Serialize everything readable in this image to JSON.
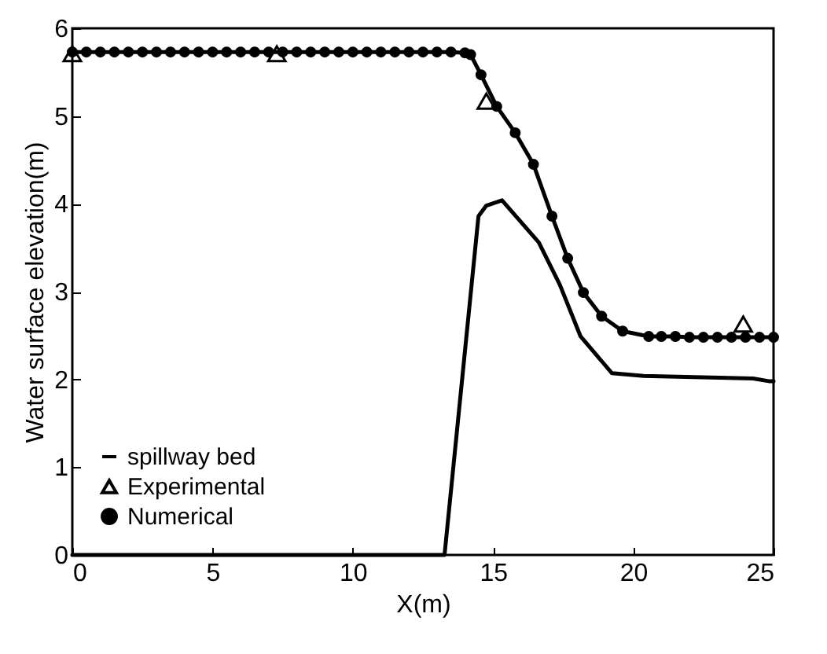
{
  "chart_data": {
    "type": "line",
    "xlabel": "X(m)",
    "ylabel": "Water surface elevation(m)",
    "xlim": [
      0,
      25
    ],
    "ylim": [
      0,
      6
    ],
    "xticks": [
      0,
      5,
      10,
      15,
      20,
      25
    ],
    "yticks": [
      0,
      1,
      2,
      3,
      4,
      5,
      6
    ],
    "legend": "bottom left",
    "series": [
      {
        "name": "spillway bed",
        "type": "line",
        "marker": "none",
        "color": "#000000",
        "x": [
          0,
          13.27,
          14.48,
          14.76,
          15.32,
          16.63,
          17.38,
          18.12,
          19.24,
          20.37,
          24.27,
          24.83,
          25
        ],
        "values": [
          0,
          0,
          3.86,
          3.98,
          4.04,
          3.56,
          3.08,
          2.49,
          2.07,
          2.04,
          2.01,
          1.98,
          1.98
        ]
      },
      {
        "name": "Experimental",
        "type": "scatter",
        "marker": "triangle",
        "color": "#000000",
        "x": [
          0,
          7.29,
          14.76,
          23.92
        ],
        "values": [
          5.71,
          5.71,
          5.17,
          2.63
        ]
      },
      {
        "name": "Numerical",
        "type": "line",
        "marker": "circle",
        "color": "#000000",
        "x": [
          0,
          0.5,
          1,
          1.5,
          2,
          2.5,
          3,
          3.5,
          4,
          4.5,
          5,
          5.5,
          6,
          6.5,
          7,
          7.5,
          8,
          8.5,
          9,
          9.5,
          10,
          10.5,
          11,
          11.5,
          12,
          12.5,
          13,
          13.5,
          14,
          14.2,
          14.57,
          15.13,
          15.79,
          16.44,
          17.1,
          17.66,
          18.22,
          18.87,
          19.62,
          20.55,
          21,
          21.5,
          22,
          22.5,
          23,
          23.5,
          24,
          24.5,
          25
        ],
        "values": [
          5.73,
          5.73,
          5.73,
          5.73,
          5.73,
          5.73,
          5.73,
          5.73,
          5.73,
          5.73,
          5.73,
          5.73,
          5.73,
          5.73,
          5.73,
          5.73,
          5.73,
          5.73,
          5.73,
          5.73,
          5.73,
          5.73,
          5.73,
          5.73,
          5.73,
          5.73,
          5.73,
          5.73,
          5.72,
          5.7,
          5.47,
          5.11,
          4.81,
          4.45,
          3.86,
          3.38,
          2.99,
          2.72,
          2.55,
          2.49,
          2.49,
          2.49,
          2.48,
          2.48,
          2.48,
          2.48,
          2.48,
          2.48,
          2.48
        ]
      }
    ]
  }
}
